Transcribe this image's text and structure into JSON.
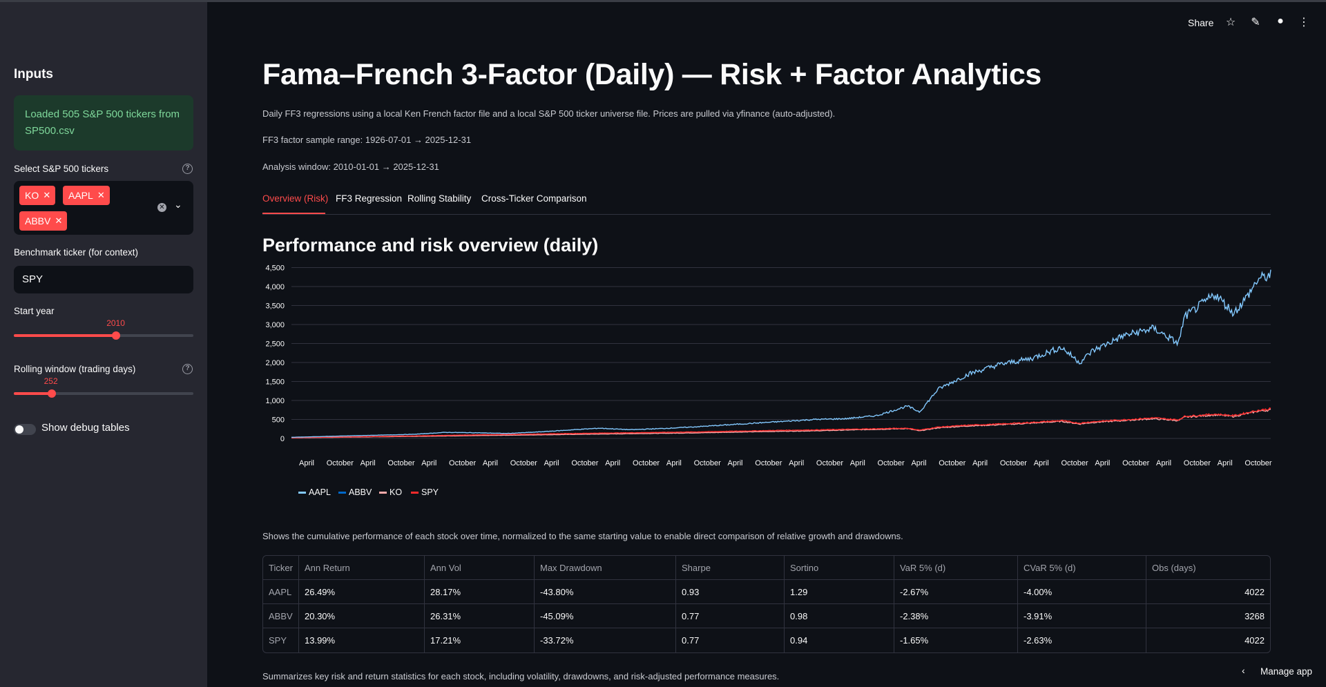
{
  "sidebar": {
    "title": "Inputs",
    "alert": "Loaded 505 S&P 500 tickers from SP500.csv",
    "tickers_label": "Select S&P 500 tickers",
    "selected_tickers": [
      "KO",
      "AAPL",
      "ABBV"
    ],
    "benchmark_label": "Benchmark ticker (for context)",
    "benchmark_value": "SPY",
    "start_year_label": "Start year",
    "start_year_value": "2010",
    "start_year_fraction": 0.57,
    "rolling_label": "Rolling window (trading days)",
    "rolling_value": "252",
    "rolling_fraction": 0.21,
    "debug_label": "Show debug tables",
    "debug_on": false
  },
  "toolbar": {
    "share": "Share",
    "icons": [
      "star-icon",
      "edit-icon",
      "github-icon",
      "more-icon"
    ]
  },
  "main": {
    "title": "Fama–French 3-Factor (Daily) — Risk + Factor Analytics",
    "description": "Daily FF3 regressions using a local Ken French factor file and a local S&P 500 ticker universe file. Prices are pulled via yfinance (auto-adjusted).",
    "factor_range": "FF3 factor sample range: 1926-07-01 → 2025-12-31",
    "analysis_window": "Analysis window: 2010-01-01 → 2025-12-31",
    "tabs": [
      "Overview (Risk)",
      "FF3 Regression",
      "Rolling Stability",
      "Cross-Ticker Comparison"
    ],
    "active_tab": 0,
    "section_title": "Performance and risk overview (daily)",
    "chart_caption": "Shows the cumulative performance of each stock over time, normalized to the same starting value to enable direct comparison of relative growth and drawdowns.",
    "table_caption": "Summarizes key risk and return statistics for each stock, including volatility, drawdowns, and risk-adjusted performance measures.",
    "manage_app": "Manage app"
  },
  "chart_data": {
    "type": "line",
    "ylim": [
      0,
      4600
    ],
    "y_ticks": [
      0,
      500,
      1000,
      1500,
      2000,
      2500,
      3000,
      3500,
      4000,
      4500
    ],
    "y_tick_labels": [
      "0",
      "500",
      "1,000",
      "1,500",
      "2,000",
      "2,500",
      "3,000",
      "3,500",
      "4,000",
      "4,500"
    ],
    "x_tick_labels": [
      "April",
      "October",
      "April",
      "October",
      "April",
      "October",
      "April",
      "October",
      "April",
      "October",
      "April",
      "October",
      "April",
      "October",
      "April",
      "October",
      "April",
      "October",
      "April",
      "October",
      "April",
      "October",
      "April",
      "October",
      "April",
      "October",
      "April",
      "October",
      "April",
      "October",
      "April",
      "October"
    ],
    "grid": true,
    "legend_position": "bottom-left",
    "x": [
      2010.0,
      2010.5,
      2011.0,
      2011.5,
      2012.0,
      2012.5,
      2013.0,
      2013.5,
      2014.0,
      2014.5,
      2015.0,
      2015.5,
      2016.0,
      2016.5,
      2017.0,
      2017.5,
      2018.0,
      2018.5,
      2019.0,
      2019.5,
      2020.0,
      2020.2,
      2020.5,
      2021.0,
      2021.5,
      2022.0,
      2022.5,
      2022.8,
      2023.0,
      2023.5,
      2024.0,
      2024.4,
      2024.5,
      2025.0,
      2025.3,
      2025.5,
      2025.7,
      2025.9
    ],
    "series": [
      {
        "name": "AAPL",
        "color": "#83c9ff",
        "values": [
          30,
          50,
          70,
          90,
          110,
          160,
          150,
          130,
          170,
          220,
          270,
          230,
          260,
          300,
          350,
          400,
          450,
          500,
          520,
          600,
          850,
          700,
          1300,
          1700,
          1950,
          2100,
          2400,
          2000,
          2300,
          2700,
          2900,
          2500,
          3200,
          3800,
          3300,
          3700,
          4200,
          4300
        ]
      },
      {
        "name": "ABBV",
        "color": "#0068c9",
        "values": [
          null,
          null,
          null,
          null,
          null,
          null,
          null,
          null,
          null,
          null,
          null,
          null,
          null,
          null,
          null,
          null,
          null,
          null,
          null,
          null,
          null,
          null,
          null,
          null,
          null,
          null,
          null,
          null,
          null,
          null,
          null,
          null,
          null,
          null,
          null,
          null,
          null,
          null
        ]
      },
      {
        "name": "KO",
        "color": "#ffabab",
        "values": [
          15,
          25,
          35,
          45,
          55,
          65,
          75,
          85,
          95,
          105,
          115,
          125,
          135,
          145,
          160,
          175,
          190,
          200,
          220,
          240,
          260,
          200,
          280,
          330,
          360,
          400,
          450,
          380,
          420,
          470,
          520,
          470,
          560,
          620,
          580,
          650,
          720,
          750
        ]
      },
      {
        "name": "SPY",
        "color": "#ff2b2b",
        "values": [
          18,
          30,
          42,
          55,
          68,
          80,
          95,
          105,
          118,
          130,
          140,
          150,
          160,
          170,
          185,
          200,
          215,
          225,
          240,
          255,
          270,
          220,
          300,
          350,
          380,
          420,
          470,
          400,
          440,
          490,
          540,
          490,
          580,
          640,
          600,
          670,
          740,
          780
        ]
      }
    ]
  },
  "stats_table": {
    "columns": [
      "Ticker",
      "Ann Return",
      "Ann Vol",
      "Max Drawdown",
      "Sharpe",
      "Sortino",
      "VaR 5% (d)",
      "CVaR 5% (d)",
      "Obs (days)"
    ],
    "rows": [
      [
        "AAPL",
        "26.49%",
        "28.17%",
        "-43.80%",
        "0.93",
        "1.29",
        "-2.67%",
        "-4.00%",
        "4022"
      ],
      [
        "ABBV",
        "20.30%",
        "26.31%",
        "-45.09%",
        "0.77",
        "0.98",
        "-2.38%",
        "-3.91%",
        "3268"
      ],
      [
        "SPY",
        "13.99%",
        "17.21%",
        "-33.72%",
        "0.77",
        "0.94",
        "-1.65%",
        "-2.63%",
        "4022"
      ]
    ]
  }
}
